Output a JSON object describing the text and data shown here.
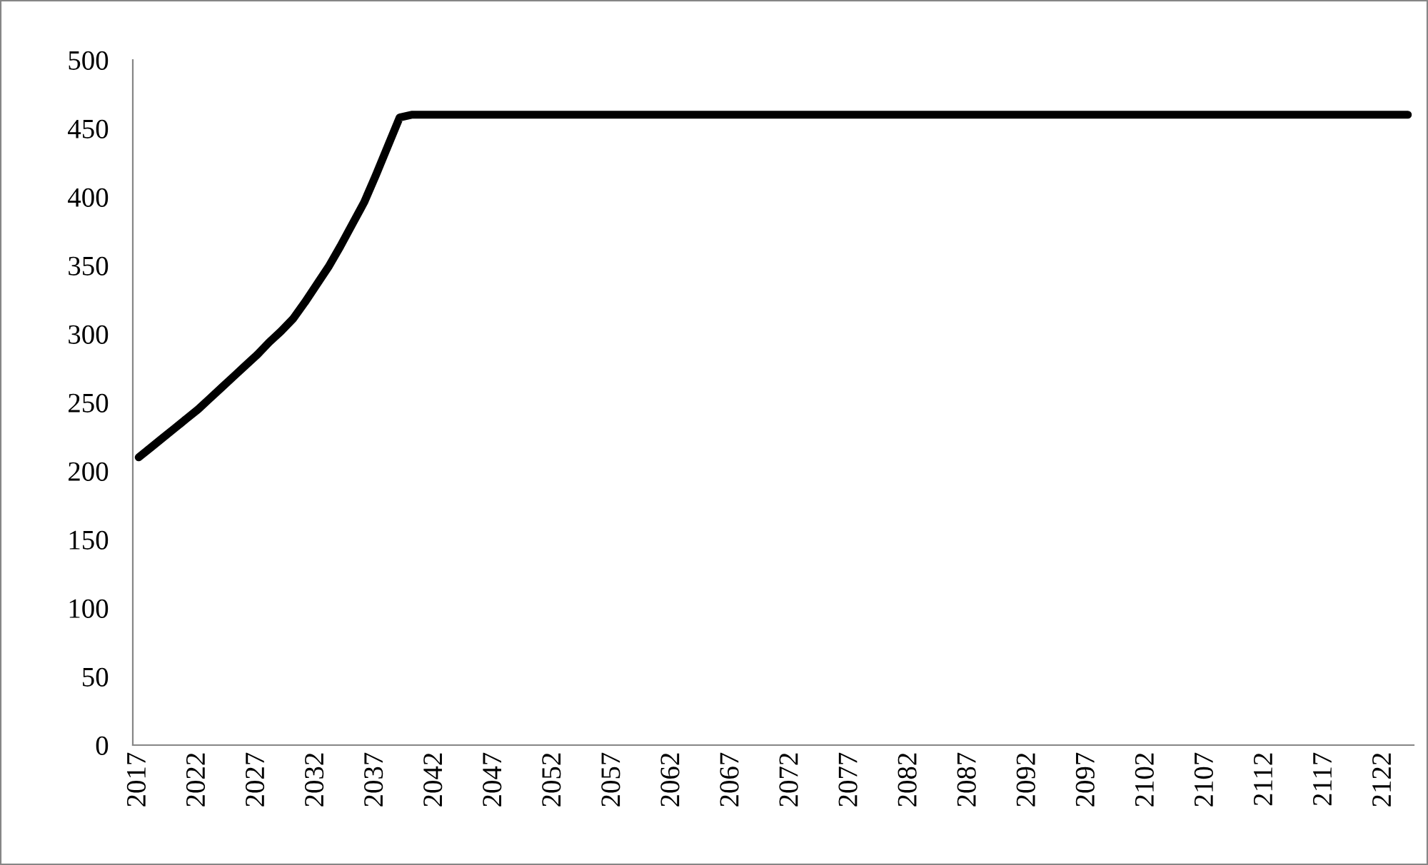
{
  "chart_data": {
    "type": "line",
    "categories": [
      "2017",
      null,
      null,
      null,
      null,
      "2022",
      null,
      null,
      null,
      null,
      "2027",
      null,
      null,
      null,
      null,
      "2032",
      null,
      null,
      null,
      null,
      "2037",
      null,
      null,
      null,
      null,
      "2042",
      null,
      null,
      null,
      null,
      "2047",
      null,
      null,
      null,
      null,
      "2052",
      null,
      null,
      null,
      null,
      "2057",
      null,
      null,
      null,
      null,
      "2062",
      null,
      null,
      null,
      null,
      "2067",
      null,
      null,
      null,
      null,
      "2072",
      null,
      null,
      null,
      null,
      "2077",
      null,
      null,
      null,
      null,
      "2082",
      null,
      null,
      null,
      null,
      "2087",
      null,
      null,
      null,
      null,
      "2092",
      null,
      null,
      null,
      null,
      "2097",
      null,
      null,
      null,
      null,
      "2102",
      null,
      null,
      null,
      null,
      "2107",
      null,
      null,
      null,
      null,
      "2112",
      null,
      null,
      null,
      null,
      "2117",
      null,
      null,
      null,
      null,
      "2122",
      null,
      null
    ],
    "series": [
      {
        "color": "#000000",
        "values": [
          210,
          217,
          224,
          231,
          238,
          245,
          253,
          261,
          269,
          277,
          285,
          294,
          302,
          311,
          323,
          336,
          349,
          364,
          380,
          396,
          416,
          437,
          458,
          460,
          460,
          460,
          460,
          460,
          460,
          460,
          460,
          460,
          460,
          460,
          460,
          460,
          460,
          460,
          460,
          460,
          460,
          460,
          460,
          460,
          460,
          460,
          460,
          460,
          460,
          460,
          460,
          460,
          460,
          460,
          460,
          460,
          460,
          460,
          460,
          460,
          460,
          460,
          460,
          460,
          460,
          460,
          460,
          460,
          460,
          460,
          460,
          460,
          460,
          460,
          460,
          460,
          460,
          460,
          460,
          460,
          460,
          460,
          460,
          460,
          460,
          460,
          460,
          460,
          460,
          460,
          460,
          460,
          460,
          460,
          460,
          460,
          460,
          460,
          460,
          460,
          460,
          460,
          460,
          460,
          460,
          460,
          460,
          460
        ]
      }
    ],
    "ylim": [
      0,
      500
    ],
    "yticks": [
      0,
      50,
      100,
      150,
      200,
      250,
      300,
      350,
      400,
      450,
      500
    ],
    "grid": false,
    "legend": false,
    "marker": "none",
    "line_style": "solid"
  }
}
